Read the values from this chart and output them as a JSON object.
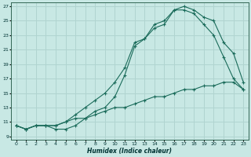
{
  "xlabel": "Humidex (Indice chaleur)",
  "bg_color": "#c8e8e4",
  "grid_color": "#b0d4d0",
  "line_color": "#1a6b5a",
  "xlim": [
    -0.5,
    23.5
  ],
  "ylim": [
    8.5,
    27.5
  ],
  "xticks": [
    0,
    1,
    2,
    3,
    4,
    5,
    6,
    7,
    8,
    9,
    10,
    11,
    12,
    13,
    14,
    15,
    16,
    17,
    18,
    19,
    20,
    21,
    22,
    23
  ],
  "yticks": [
    9,
    11,
    13,
    15,
    17,
    19,
    21,
    23,
    25,
    27
  ],
  "curve1_x": [
    0,
    1,
    2,
    3,
    4,
    5,
    6,
    7,
    8,
    9,
    10,
    11,
    12,
    13,
    14,
    15,
    16,
    17,
    18,
    19,
    20,
    21,
    22,
    23
  ],
  "curve1_y": [
    10.5,
    10.0,
    10.5,
    10.5,
    10.5,
    11.0,
    11.5,
    11.5,
    12.0,
    12.5,
    13.0,
    13.0,
    13.5,
    14.0,
    14.5,
    14.5,
    15.0,
    15.5,
    15.5,
    16.0,
    16.0,
    16.5,
    16.5,
    15.5
  ],
  "curve2_x": [
    0,
    1,
    2,
    3,
    4,
    5,
    6,
    7,
    8,
    9,
    10,
    11,
    12,
    13,
    14,
    15,
    16,
    17,
    18,
    19,
    20,
    21,
    22,
    23
  ],
  "curve2_y": [
    10.5,
    10.0,
    10.5,
    10.5,
    10.5,
    11.0,
    12.0,
    13.0,
    14.0,
    15.0,
    16.5,
    18.5,
    22.0,
    22.5,
    24.0,
    24.5,
    26.5,
    26.5,
    26.0,
    24.5,
    23.0,
    20.0,
    17.0,
    15.5
  ],
  "curve3_x": [
    0,
    1,
    2,
    3,
    4,
    5,
    6,
    7,
    8,
    9,
    10,
    11,
    12,
    13,
    14,
    15,
    16,
    17,
    18,
    19,
    20,
    21,
    22,
    23
  ],
  "curve3_y": [
    10.5,
    10.0,
    10.5,
    10.5,
    10.0,
    10.0,
    10.5,
    11.5,
    12.5,
    13.0,
    14.5,
    17.5,
    21.5,
    22.5,
    24.5,
    25.0,
    26.5,
    27.0,
    26.5,
    25.5,
    25.0,
    22.0,
    20.5,
    16.5
  ]
}
